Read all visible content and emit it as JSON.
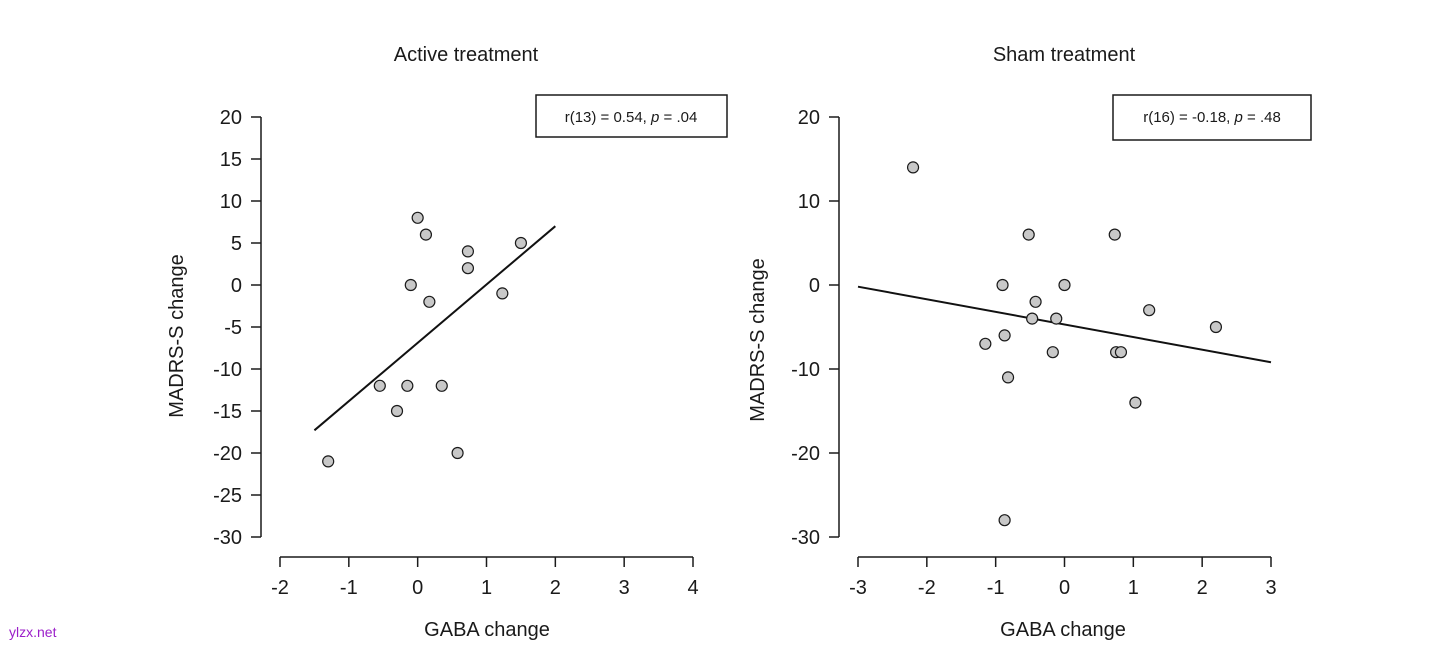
{
  "watermark": "ylzx.net",
  "chart_data": [
    {
      "type": "scatter",
      "title": "Active treatment",
      "xlabel": "GABA change",
      "ylabel": "MADRS-S change",
      "xlim": [
        -2,
        4
      ],
      "ylim": [
        -30,
        20
      ],
      "xticks": [
        "-2",
        "-1",
        "0",
        "1",
        "2",
        "3",
        "4"
      ],
      "yticks": [
        "20",
        "15",
        "10",
        "5",
        "0",
        "-5",
        "-10",
        "-15",
        "-20",
        "-25",
        "-30"
      ],
      "stat": {
        "prefix": "r(13) = 0.54, ",
        "p": "p",
        "suffix": " = .04"
      },
      "points": [
        {
          "x": -1.3,
          "y": -21
        },
        {
          "x": -0.55,
          "y": -12
        },
        {
          "x": -0.3,
          "y": -15
        },
        {
          "x": -0.15,
          "y": -12
        },
        {
          "x": -0.1,
          "y": 0
        },
        {
          "x": 0.0,
          "y": 8
        },
        {
          "x": 0.12,
          "y": 6
        },
        {
          "x": 0.17,
          "y": -2
        },
        {
          "x": 0.35,
          "y": -12
        },
        {
          "x": 0.58,
          "y": -20
        },
        {
          "x": 0.73,
          "y": 4
        },
        {
          "x": 0.73,
          "y": 2
        },
        {
          "x": 1.23,
          "y": -1
        },
        {
          "x": 1.5,
          "y": 5
        }
      ],
      "fit": {
        "x1": -1.5,
        "y1": -17.3,
        "x2": 2.0,
        "y2": 7.0
      },
      "grid": false,
      "marker_color": "#c8c8c8"
    },
    {
      "type": "scatter",
      "title": "Sham treatment",
      "xlabel": "GABA change",
      "ylabel": "MADRS-S change",
      "xlim": [
        -3,
        3
      ],
      "ylim": [
        -30,
        20
      ],
      "xticks": [
        "-3",
        "-2",
        "-1",
        "0",
        "1",
        "2",
        "3"
      ],
      "yticks": [
        "20",
        "10",
        "0",
        "-10",
        "-20",
        "-30"
      ],
      "stat": {
        "prefix": "r(16) = -0.18, ",
        "p": "p",
        "suffix": " = .48"
      },
      "points": [
        {
          "x": -2.2,
          "y": 14
        },
        {
          "x": -1.15,
          "y": -7
        },
        {
          "x": -0.9,
          "y": 0
        },
        {
          "x": -0.87,
          "y": -6
        },
        {
          "x": -0.82,
          "y": -11
        },
        {
          "x": -0.87,
          "y": -28
        },
        {
          "x": -0.52,
          "y": 6
        },
        {
          "x": -0.47,
          "y": -4
        },
        {
          "x": -0.42,
          "y": -2
        },
        {
          "x": -0.17,
          "y": -8
        },
        {
          "x": -0.12,
          "y": -4
        },
        {
          "x": 0.0,
          "y": 0
        },
        {
          "x": 0.73,
          "y": 6
        },
        {
          "x": 0.75,
          "y": -8
        },
        {
          "x": 0.82,
          "y": -8
        },
        {
          "x": 1.03,
          "y": -14
        },
        {
          "x": 1.23,
          "y": -3
        },
        {
          "x": 2.2,
          "y": -5
        }
      ],
      "fit": {
        "x1": -3.0,
        "y1": -0.2,
        "x2": 3.0,
        "y2": -9.2
      },
      "grid": false,
      "marker_color": "#c8c8c8"
    }
  ]
}
